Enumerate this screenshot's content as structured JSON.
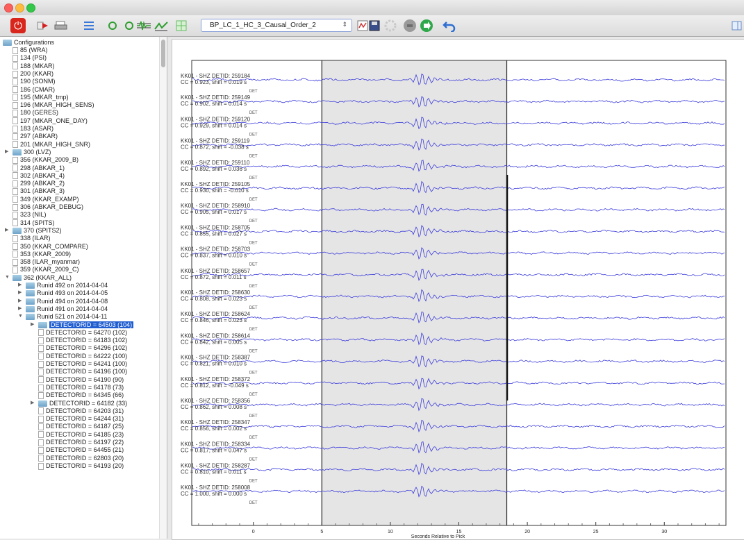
{
  "window": {
    "title": ""
  },
  "toolbar": {
    "combo_value": "BP_LC_1_HC_3_Causal_Order_2",
    "icons": [
      "power-icon",
      "red-arrow-icon",
      "print-icon",
      "list-icon",
      "green-circle-icon",
      "green-circle-icon",
      "waveform-icon",
      "waveform-arrow-icon",
      "grid-icon",
      "filter-icon",
      "save-icon",
      "gear-icon",
      "record-icon",
      "go-icon",
      "undo-icon"
    ]
  },
  "sidebar": {
    "root": "Configurations",
    "items": [
      {
        "label": "85 (WRA)",
        "type": "doc",
        "level": 1
      },
      {
        "label": "134 (PSI)",
        "type": "doc",
        "level": 1
      },
      {
        "label": "188 (MKAR)",
        "type": "doc",
        "level": 1
      },
      {
        "label": "200 (KKAR)",
        "type": "doc",
        "level": 1
      },
      {
        "label": "190 (SONM)",
        "type": "doc",
        "level": 1
      },
      {
        "label": "186 (CMAR)",
        "type": "doc",
        "level": 1
      },
      {
        "label": "195 (MKAR_tmp)",
        "type": "doc",
        "level": 1
      },
      {
        "label": "196 (MKAR_HIGH_SENS)",
        "type": "doc",
        "level": 1
      },
      {
        "label": "180 (GERES)",
        "type": "doc",
        "level": 1
      },
      {
        "label": "197 (MKAR_ONE_DAY)",
        "type": "doc",
        "level": 1
      },
      {
        "label": "183 (ASAR)",
        "type": "doc",
        "level": 1
      },
      {
        "label": "297 (ABKAR)",
        "type": "doc",
        "level": 1
      },
      {
        "label": "201 (MKAR_HIGH_SNR)",
        "type": "doc",
        "level": 1
      },
      {
        "label": "300 (LVZ)",
        "type": "folder",
        "level": 1,
        "toggle": "▶"
      },
      {
        "label": "356 (KKAR_2009_B)",
        "type": "doc",
        "level": 1
      },
      {
        "label": "298 (ABKAR_1)",
        "type": "doc",
        "level": 1
      },
      {
        "label": "302 (ABKAR_4)",
        "type": "doc",
        "level": 1
      },
      {
        "label": "299 (ABKAR_2)",
        "type": "doc",
        "level": 1
      },
      {
        "label": "301 (ABKAR_3)",
        "type": "doc",
        "level": 1
      },
      {
        "label": "349 (KKAR_EXAMP)",
        "type": "doc",
        "level": 1
      },
      {
        "label": "306 (ABKAR_DEBUG)",
        "type": "doc",
        "level": 1
      },
      {
        "label": "323 (NIL)",
        "type": "doc",
        "level": 1
      },
      {
        "label": "314 (SPITS)",
        "type": "doc",
        "level": 1
      },
      {
        "label": "370 (SPITS2)",
        "type": "folder",
        "level": 1,
        "toggle": "▶"
      },
      {
        "label": "338 (ILAR)",
        "type": "doc",
        "level": 1
      },
      {
        "label": "350 (KKAR_COMPARE)",
        "type": "doc",
        "level": 1
      },
      {
        "label": "353 (KKAR_2009)",
        "type": "doc",
        "level": 1
      },
      {
        "label": "358 (ILAR_myanmar)",
        "type": "doc",
        "level": 1
      },
      {
        "label": "359 (KKAR_2009_C)",
        "type": "doc",
        "level": 1
      },
      {
        "label": "362 (KKAR_ALL)",
        "type": "folder",
        "level": 1,
        "toggle": "▼"
      },
      {
        "label": "Runid 492 on 2014-04-04",
        "type": "folder",
        "level": 2,
        "toggle": "▶"
      },
      {
        "label": "Runid 493 on 2014-04-05",
        "type": "folder",
        "level": 2,
        "toggle": "▶"
      },
      {
        "label": "Runid 494 on 2014-04-08",
        "type": "folder",
        "level": 2,
        "toggle": "▶"
      },
      {
        "label": "Runid 491 on 2014-04-04",
        "type": "folder",
        "level": 2,
        "toggle": "▶"
      },
      {
        "label": "Runid 521 on 2014-04-11",
        "type": "folder",
        "level": 2,
        "toggle": "▼"
      },
      {
        "label": "DETECTORID = 64503 (104)",
        "type": "folder",
        "level": 3,
        "toggle": "▶",
        "selected": true
      },
      {
        "label": "DETECTORID = 64270 (102)",
        "type": "doc",
        "level": 3
      },
      {
        "label": "DETECTORID = 64183 (102)",
        "type": "doc",
        "level": 3
      },
      {
        "label": "DETECTORID = 64296 (102)",
        "type": "doc",
        "level": 3
      },
      {
        "label": "DETECTORID = 64222 (100)",
        "type": "doc",
        "level": 3
      },
      {
        "label": "DETECTORID = 64241 (100)",
        "type": "doc",
        "level": 3
      },
      {
        "label": "DETECTORID = 64196 (100)",
        "type": "doc",
        "level": 3
      },
      {
        "label": "DETECTORID = 64190 (90)",
        "type": "doc",
        "level": 3
      },
      {
        "label": "DETECTORID = 64178 (73)",
        "type": "doc",
        "level": 3
      },
      {
        "label": "DETECTORID = 64345 (66)",
        "type": "doc",
        "level": 3
      },
      {
        "label": "DETECTORID = 64182 (33)",
        "type": "folder",
        "level": 3,
        "toggle": "▶"
      },
      {
        "label": "DETECTORID = 64203 (31)",
        "type": "doc",
        "level": 3
      },
      {
        "label": "DETECTORID = 64244 (31)",
        "type": "doc",
        "level": 3
      },
      {
        "label": "DETECTORID = 64187 (25)",
        "type": "doc",
        "level": 3
      },
      {
        "label": "DETECTORID = 64185 (23)",
        "type": "doc",
        "level": 3
      },
      {
        "label": "DETECTORID = 64197 (22)",
        "type": "doc",
        "level": 3
      },
      {
        "label": "DETECTORID = 64455 (21)",
        "type": "doc",
        "level": 3
      },
      {
        "label": "DETECTORID = 62803 (20)",
        "type": "doc",
        "level": 3
      },
      {
        "label": "DETECTORID = 64193 (20)",
        "type": "doc",
        "level": 3
      }
    ]
  },
  "plot": {
    "xlabel": "Seconds Relative to Pick",
    "xticks": [
      0,
      5,
      10,
      15,
      20,
      25,
      30
    ],
    "xlim": [
      -4.5,
      34.5
    ],
    "window_start": 5,
    "window_end": 18.5,
    "pick": 12,
    "marker_line_x": 18.5,
    "det_label": "DET",
    "trace_color": "#3b3bdc",
    "traces": [
      {
        "detid": "KK01 - SHZ DETID: 259184",
        "cc": "CC = 0.923, shift = 0.019 s"
      },
      {
        "detid": "KK01 - SHZ DETID: 259149",
        "cc": "CC = 0.902, shift = 0.014 s"
      },
      {
        "detid": "KK01 - SHZ DETID: 259120",
        "cc": "CC = 0.929, shift = 0.014 s"
      },
      {
        "detid": "KK01 - SHZ DETID: 259119",
        "cc": "CC = 0.872, shift = -0.038 s"
      },
      {
        "detid": "KK01 - SHZ DETID: 259110",
        "cc": "CC = 0.892, shift = 0.036 s"
      },
      {
        "detid": "KK01 - SHZ DETID: 259105",
        "cc": "CC = 0.930, shift = -0.010 s"
      },
      {
        "detid": "KK01 - SHZ DETID: 258910",
        "cc": "CC = 0.905, shift = 0.017 s"
      },
      {
        "detid": "KK01 - SHZ DETID: 258705",
        "cc": "CC = 0.855, shift = 0.027 s"
      },
      {
        "detid": "KK01 - SHZ DETID: 258703",
        "cc": "CC = 0.837, shift = 0.010 s"
      },
      {
        "detid": "KK01 - SHZ DETID: 258657",
        "cc": "CC = 0.872, shift = 0.011 s"
      },
      {
        "detid": "KK01 - SHZ DETID: 258630",
        "cc": "CC = 0.808, shift = 0.023 s"
      },
      {
        "detid": "KK01 - SHZ DETID: 258624",
        "cc": "CC = 0.846, shift = 0.023 s"
      },
      {
        "detid": "KK01 - SHZ DETID: 258614",
        "cc": "CC = 0.842, shift = 0.005 s"
      },
      {
        "detid": "KK01 - SHZ DETID: 258387",
        "cc": "CC = 0.821, shift = 0.010 s"
      },
      {
        "detid": "KK01 - SHZ DETID: 258372",
        "cc": "CC = 0.812, shift = -0.049 s"
      },
      {
        "detid": "KK01 - SHZ DETID: 258356",
        "cc": "CC = 0.862, shift = 0.008 s"
      },
      {
        "detid": "KK01 - SHZ DETID: 258347",
        "cc": "CC = 0.856, shift = 0.002 s"
      },
      {
        "detid": "KK01 - SHZ DETID: 258334",
        "cc": "CC = 0.817, shift = 0.047 s"
      },
      {
        "detid": "KK01 - SHZ DETID: 258287",
        "cc": "CC = 0.810, shift = 0.011 s"
      },
      {
        "detid": "KK01 - SHZ DETID: 258008",
        "cc": "CC = 1.000, shift = 0.000 s"
      }
    ]
  }
}
